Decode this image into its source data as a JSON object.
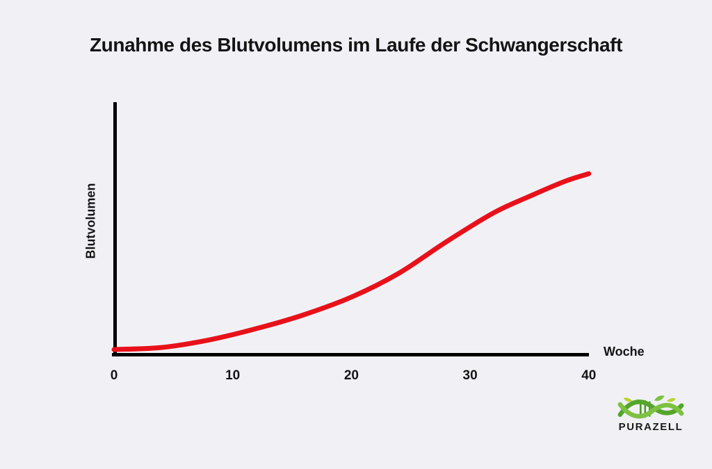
{
  "page": {
    "background_color": "#f1f1f5"
  },
  "chart_data": {
    "type": "line",
    "title": "Zunahme des Blutvolumens im Laufe der Schwangerschaft",
    "xlabel": "Woche",
    "ylabel": "Blutvolumen",
    "xlim": [
      0,
      40
    ],
    "x_ticks": [
      0,
      10,
      20,
      30,
      40
    ],
    "x_tick_labels": [
      "0",
      "10",
      "20",
      "30",
      "40"
    ],
    "y_ticks": [],
    "grid": false,
    "legend": false,
    "line_color": "#e8111a",
    "axis_color": "#000000",
    "series": [
      {
        "name": "Blutvolumen",
        "x": [
          0,
          4,
          8,
          12,
          16,
          20,
          24,
          28,
          32,
          35,
          38,
          40
        ],
        "y": [
          2.2,
          3.0,
          6.0,
          10.5,
          16.0,
          23.0,
          32.5,
          45.0,
          56.5,
          63.0,
          69.0,
          72.0
        ],
        "y_units": "relative blood volume (arbitrary units, y-axis unlabeled)"
      }
    ],
    "description": "S-shaped rising curve: blood volume increases slowly during early pregnancy, climbs steeply mid-pregnancy, and levels off toward week 40."
  },
  "branding": {
    "logo_text": "PURAZELL",
    "logo_icon": "dna-leaf-icon",
    "green_dark": "#55a52c",
    "green_light": "#7dc142",
    "green_yellow": "#b9d431"
  }
}
